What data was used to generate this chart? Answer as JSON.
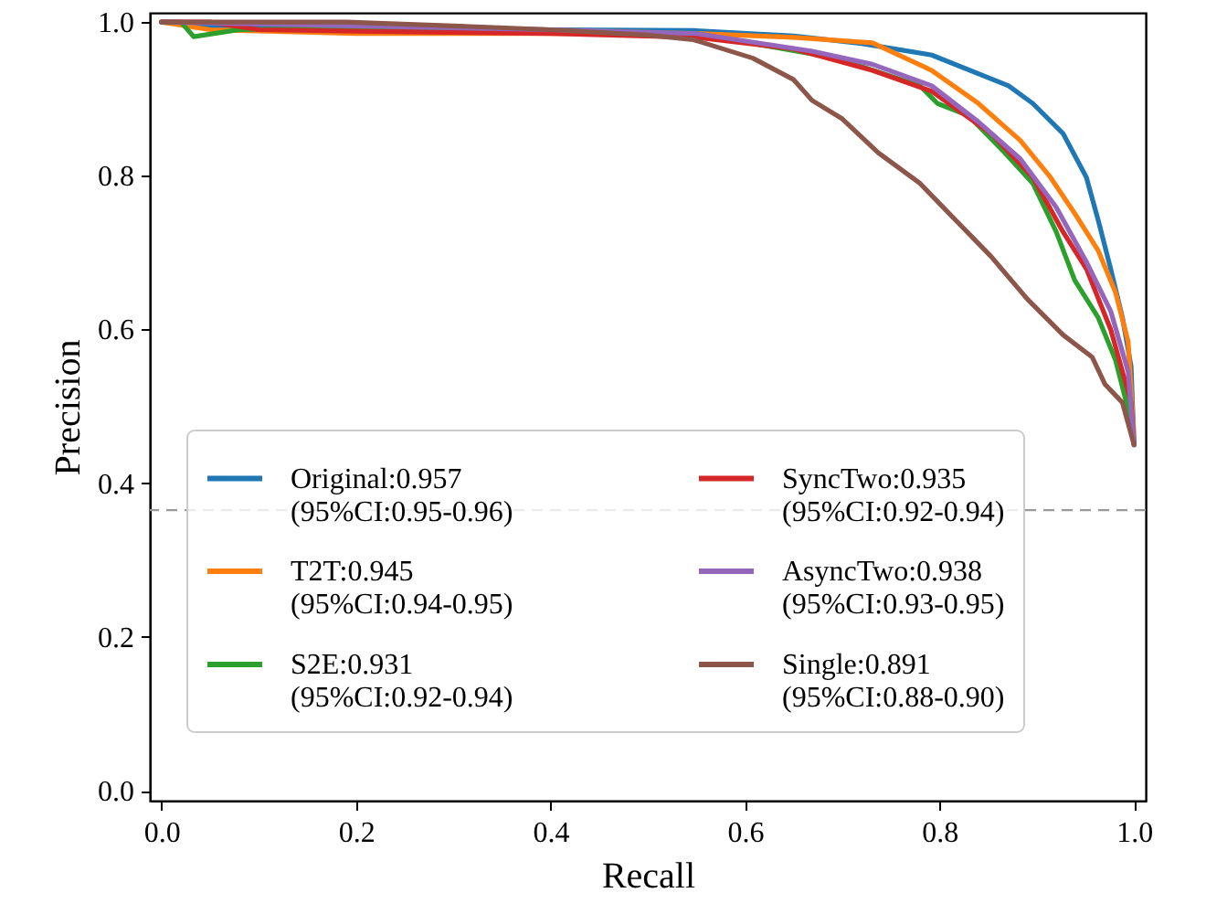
{
  "chart_data": {
    "type": "line",
    "xlabel": "Recall",
    "ylabel": "Precision",
    "xlim": [
      -0.012,
      1.012
    ],
    "ylim": [
      -0.013,
      1.012
    ],
    "xticks": [
      {
        "value": 0,
        "label": "0.0"
      },
      0.2,
      0.4,
      0.6,
      0.8,
      {
        "value": 1,
        "label": "1.0"
      }
    ],
    "yticks": [
      {
        "value": 0,
        "label": "0.0"
      },
      0.2,
      0.4,
      0.6,
      0.8,
      {
        "value": 1,
        "label": "1.0"
      }
    ],
    "grid": false,
    "legend": "bottom",
    "marker": "none",
    "line_style": "solid",
    "ref_lines": [
      {
        "axis": "y",
        "value": 0.365,
        "color": "#999999",
        "line_style": "dashed"
      }
    ],
    "series": [
      {
        "name": "Original:0.957 (95%CI:0.95-0.96)",
        "color": "#1f77b4",
        "x": [
          0,
          0.05,
          0.2,
          0.4,
          0.547,
          0.65,
          0.72,
          0.792,
          0.871,
          0.896,
          0.927,
          0.951,
          0.963,
          0.976,
          0.988,
          0.997,
          1.0
        ],
        "values": [
          1.0,
          0.995,
          0.99,
          0.99,
          0.989,
          0.982,
          0.972,
          0.957,
          0.917,
          0.894,
          0.855,
          0.798,
          0.743,
          0.679,
          0.616,
          0.552,
          0.45
        ]
      },
      {
        "name": "T2T:0.945 (95%CI:0.94-0.95)",
        "color": "#ff7f0e",
        "x": [
          0,
          0.05,
          0.2,
          0.4,
          0.55,
          0.65,
          0.731,
          0.792,
          0.84,
          0.883,
          0.914,
          0.939,
          0.963,
          0.981,
          0.994,
          1.0
        ],
        "values": [
          1.0,
          0.99,
          0.985,
          0.985,
          0.985,
          0.98,
          0.973,
          0.937,
          0.894,
          0.846,
          0.798,
          0.751,
          0.703,
          0.648,
          0.584,
          0.46
        ]
      },
      {
        "name": "S2E:0.931 (95%CI:0.92-0.94)",
        "color": "#2ca02c",
        "x": [
          0,
          0.02,
          0.033,
          0.08,
          0.2,
          0.4,
          0.55,
          0.694,
          0.78,
          0.798,
          0.83,
          0.867,
          0.896,
          0.92,
          0.939,
          0.963,
          0.981,
          0.997,
          1.0
        ],
        "values": [
          1.0,
          1.0,
          0.981,
          0.99,
          0.992,
          0.99,
          0.985,
          0.953,
          0.917,
          0.894,
          0.878,
          0.83,
          0.79,
          0.727,
          0.664,
          0.616,
          0.56,
          0.481,
          0.45
        ]
      },
      {
        "name": "SyncTwo:0.935 (95%CI:0.92-0.94)",
        "color": "#d62728",
        "x": [
          0,
          0.05,
          0.1,
          0.2,
          0.4,
          0.55,
          0.65,
          0.731,
          0.792,
          0.853,
          0.896,
          0.927,
          0.951,
          0.976,
          0.997,
          1.0
        ],
        "values": [
          1.0,
          1.0,
          0.99,
          0.988,
          0.985,
          0.98,
          0.965,
          0.937,
          0.91,
          0.855,
          0.798,
          0.727,
          0.679,
          0.6,
          0.505,
          0.45
        ]
      },
      {
        "name": "AsyncTwo:0.938 (95%CI:0.93-0.95)",
        "color": "#9467bd",
        "x": [
          0,
          0.2,
          0.4,
          0.55,
          0.669,
          0.731,
          0.792,
          0.84,
          0.883,
          0.92,
          0.951,
          0.976,
          0.994,
          1.0
        ],
        "values": [
          1.0,
          0.995,
          0.99,
          0.985,
          0.962,
          0.945,
          0.917,
          0.87,
          0.822,
          0.759,
          0.688,
          0.624,
          0.545,
          0.45
        ]
      },
      {
        "name": "Single:0.891 (95%CI:0.88-0.90)",
        "color": "#8c564b",
        "x": [
          0,
          0.19,
          0.3,
          0.4,
          0.5,
          0.547,
          0.608,
          0.65,
          0.669,
          0.7,
          0.737,
          0.78,
          0.816,
          0.853,
          0.89,
          0.927,
          0.957,
          0.97,
          0.988,
          1.0
        ],
        "values": [
          1.0,
          1.0,
          0.995,
          0.99,
          0.983,
          0.977,
          0.953,
          0.925,
          0.898,
          0.874,
          0.83,
          0.79,
          0.743,
          0.695,
          0.64,
          0.593,
          0.564,
          0.529,
          0.505,
          0.45
        ]
      }
    ]
  }
}
